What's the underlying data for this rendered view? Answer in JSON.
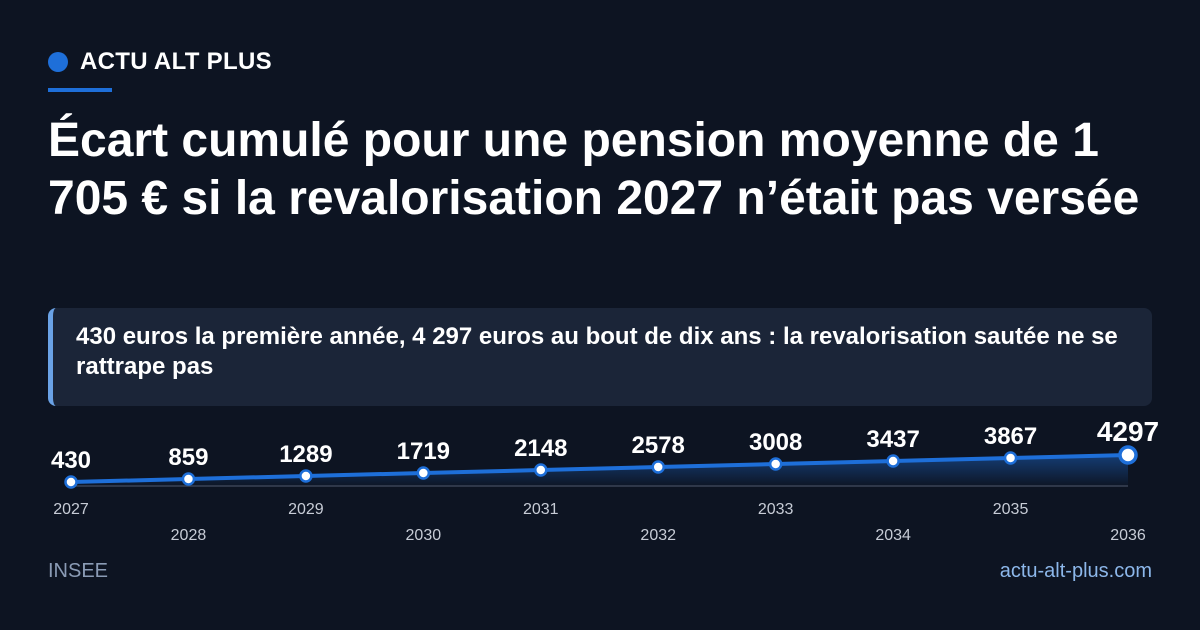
{
  "brand": {
    "name": "ACTU ALT PLUS"
  },
  "title": "Écart cumulé pour une pension moyenne de 1 705 € si la revalorisation 2027 n’était pas versée",
  "subtitle": "430 euros la première année, 4 297 euros au bout de dix ans : la revalorisation sautée ne se rattrape pas",
  "footer": {
    "source": "INSEE",
    "site": "actu-alt-plus.com"
  },
  "colors": {
    "accent": "#1e6fd9",
    "background": "#0d1422",
    "panel": "#1b2538",
    "line": "#1e6fd9"
  },
  "chart_data": {
    "type": "line",
    "x": [
      "2027",
      "2028",
      "2029",
      "2030",
      "2031",
      "2032",
      "2033",
      "2034",
      "2035",
      "2036"
    ],
    "values": [
      430,
      859,
      1289,
      1719,
      2148,
      2578,
      3008,
      3437,
      3867,
      4297
    ],
    "title": "",
    "xlabel": "",
    "ylabel": "",
    "ylim": [
      0,
      4297
    ],
    "grid": false,
    "legend": "none",
    "data_labels": true,
    "area_fill": true
  }
}
